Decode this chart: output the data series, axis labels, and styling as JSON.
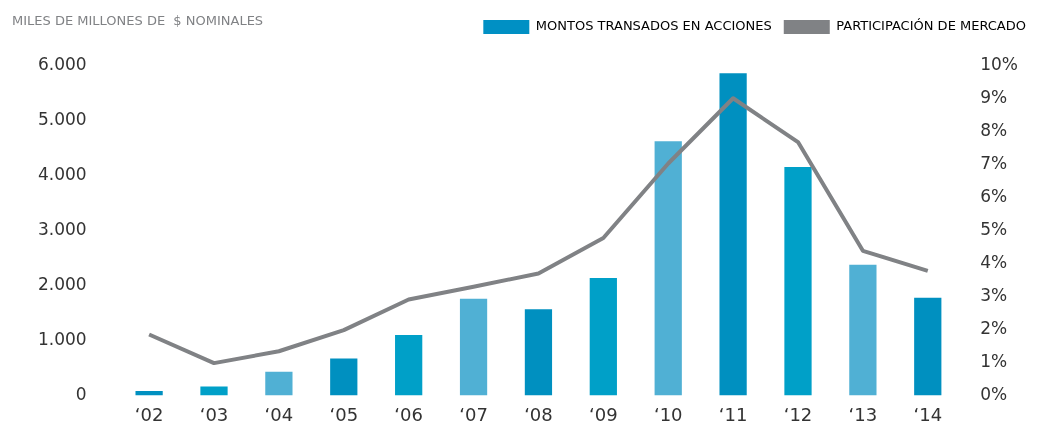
{
  "chart_data": {
    "type": "bar",
    "ylabel": "MILES DE MILLONES DE  $ NOMINALES",
    "categories": [
      "‘02",
      "‘03",
      "‘04",
      "‘05",
      "‘06",
      "‘07",
      "‘08",
      "‘09",
      "‘10",
      "‘11",
      "‘12",
      "‘13",
      "‘14"
    ],
    "series": [
      {
        "name": "MONTOS TRANSADOS EN ACCIONES",
        "color": "#0090c4",
        "colors": [
          "#0090c0",
          "#00a0c8",
          "#50b0d4",
          "#0090c0",
          "#00a0c8",
          "#50b0d4",
          "#0090c0",
          "#00a0c8",
          "#50b0d4",
          "#0090c0",
          "#00a0c8",
          "#50b0d4",
          "#0090c0"
        ],
        "values": [
          80,
          160,
          430,
          670,
          1100,
          1760,
          1570,
          2140,
          4630,
          5870,
          4160,
          2380,
          1780
        ]
      },
      {
        "name": "PARTICIPACIÓN DE MERCADO",
        "type": "line",
        "axis": "y2",
        "color": "#808285",
        "values": [
          1.85,
          0.98,
          1.34,
          1.98,
          2.91,
          3.3,
          3.7,
          4.78,
          7.04,
          9.02,
          7.69,
          4.39,
          3.78
        ]
      }
    ],
    "ylim": [
      0,
      6000
    ],
    "yticks": [
      {
        "value": 0,
        "label": "0"
      },
      {
        "value": 1000,
        "label": "1.000"
      },
      {
        "value": 2000,
        "label": "2.000"
      },
      {
        "value": 3000,
        "label": "3.000"
      },
      {
        "value": 4000,
        "label": "4.000"
      },
      {
        "value": 5000,
        "label": "5.000"
      },
      {
        "value": 6000,
        "label": "6.000"
      }
    ],
    "y2lim": [
      0,
      10
    ],
    "y2ticks": [
      {
        "value": 0,
        "label": "0%"
      },
      {
        "value": 1,
        "label": "1%"
      },
      {
        "value": 2,
        "label": "2%"
      },
      {
        "value": 3,
        "label": "3%"
      },
      {
        "value": 4,
        "label": "4%"
      },
      {
        "value": 5,
        "label": "5%"
      },
      {
        "value": 6,
        "label": "6%"
      },
      {
        "value": 7,
        "label": "7%"
      },
      {
        "value": 8,
        "label": "8%"
      },
      {
        "value": 9,
        "label": "9%"
      },
      {
        "value": 10,
        "label": "10%"
      }
    ],
    "grid": false,
    "legend": "top right",
    "marker": "none"
  }
}
